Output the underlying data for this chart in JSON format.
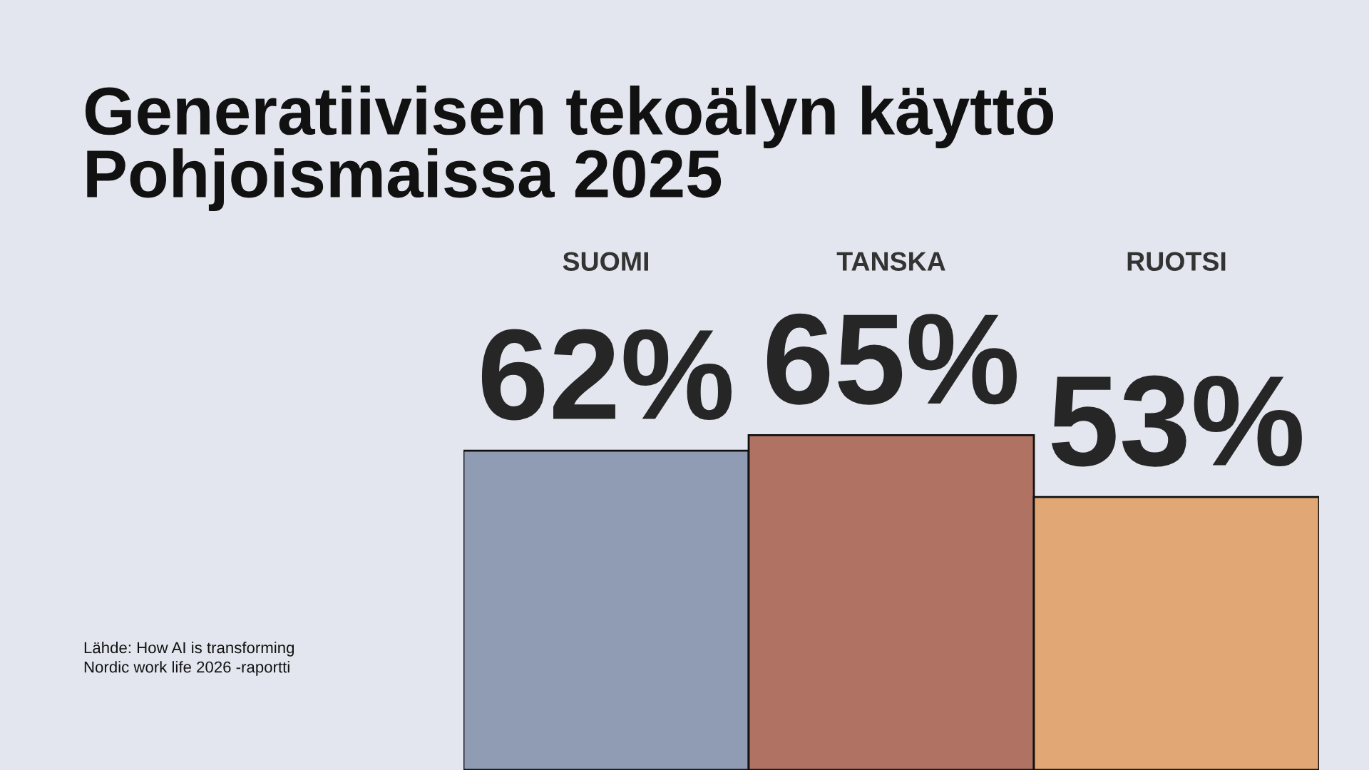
{
  "chart_data": {
    "type": "bar",
    "title": "Generatiivisen tekoälyn käyttö\nPohjoismaissa 2025",
    "categories": [
      "SUOMI",
      "TANSKA",
      "RUOTSI"
    ],
    "values": [
      62,
      65,
      53
    ],
    "colors": [
      "#8f9cb4",
      "#b07363",
      "#e1a876"
    ],
    "value_labels": [
      "62%",
      "65%",
      "53%"
    ],
    "annotations": [
      "Lähde: How AI is transforming\nNordic work life 2026 -raportti"
    ],
    "tick_labels": false,
    "grid": false,
    "legend": false
  }
}
